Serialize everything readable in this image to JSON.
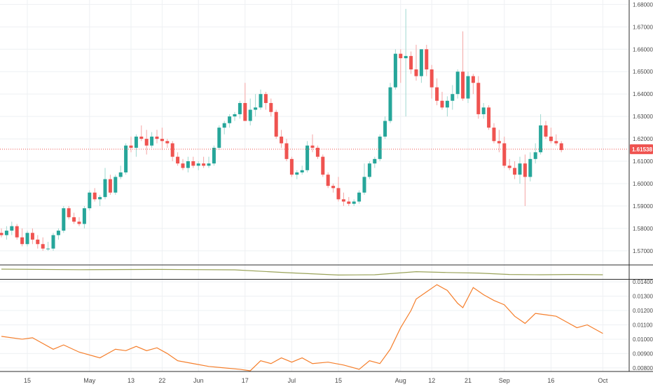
{
  "chart_data": {
    "type": "candlestick",
    "colors": {
      "up": "#26a69a",
      "down": "#ef5350",
      "wick_up": "#9fd8d0",
      "wick_down": "#f4a5a4",
      "price_line": "#ef5350",
      "price_tag_bg": "#ef5350",
      "volume_line": "#9aa35a",
      "atr_line": "#f57f2c",
      "grid": "#eef0f3",
      "axis": "#2e2e2e"
    },
    "price_axis": {
      "ylim": [
        1.564,
        1.682
      ],
      "ticks": [
        "1.57000",
        "1.58000",
        "1.59000",
        "1.60000",
        "1.61000",
        "1.62000",
        "1.63000",
        "1.64000",
        "1.65000",
        "1.66000",
        "1.67000",
        "1.68000"
      ]
    },
    "current_price": 1.61538,
    "current_price_label": "1.61538",
    "x_axis": {
      "ticks": [
        {
          "i": 5,
          "label": "15"
        },
        {
          "i": 17,
          "label": "May"
        },
        {
          "i": 25,
          "label": "13"
        },
        {
          "i": 31,
          "label": "22"
        },
        {
          "i": 38,
          "label": "Jun"
        },
        {
          "i": 47,
          "label": "17"
        },
        {
          "i": 56,
          "label": "Jul"
        },
        {
          "i": 65,
          "label": "15"
        },
        {
          "i": 77,
          "label": "Aug"
        },
        {
          "i": 83,
          "label": "12"
        },
        {
          "i": 90,
          "label": "21"
        },
        {
          "i": 97,
          "label": "Sep"
        },
        {
          "i": 106,
          "label": "16"
        },
        {
          "i": 116,
          "label": "Oct"
        }
      ]
    },
    "candles": [
      [
        1.578,
        1.58,
        1.576,
        1.577
      ],
      [
        1.577,
        1.581,
        1.575,
        1.579
      ],
      [
        1.579,
        1.583,
        1.577,
        1.581
      ],
      [
        1.581,
        1.582,
        1.575,
        1.576
      ],
      [
        1.576,
        1.58,
        1.572,
        1.573
      ],
      [
        1.573,
        1.579,
        1.572,
        1.578
      ],
      [
        1.578,
        1.58,
        1.573,
        1.575
      ],
      [
        1.575,
        1.577,
        1.571,
        1.573
      ],
      [
        1.573,
        1.576,
        1.57,
        1.571
      ],
      [
        1.571,
        1.574,
        1.57,
        1.571
      ],
      [
        1.571,
        1.578,
        1.57,
        1.577
      ],
      [
        1.577,
        1.58,
        1.575,
        1.579
      ],
      [
        1.579,
        1.59,
        1.578,
        1.589
      ],
      [
        1.589,
        1.59,
        1.584,
        1.585
      ],
      [
        1.585,
        1.587,
        1.582,
        1.583
      ],
      [
        1.583,
        1.585,
        1.581,
        1.582
      ],
      [
        1.582,
        1.59,
        1.58,
        1.589
      ],
      [
        1.589,
        1.597,
        1.588,
        1.596
      ],
      [
        1.596,
        1.598,
        1.592,
        1.593
      ],
      [
        1.593,
        1.595,
        1.59,
        1.594
      ],
      [
        1.594,
        1.607,
        1.593,
        1.602
      ],
      [
        1.602,
        1.604,
        1.595,
        1.596
      ],
      [
        1.596,
        1.604,
        1.595,
        1.603
      ],
      [
        1.603,
        1.608,
        1.602,
        1.605
      ],
      [
        1.605,
        1.618,
        1.604,
        1.617
      ],
      [
        1.617,
        1.621,
        1.614,
        1.616
      ],
      [
        1.616,
        1.622,
        1.612,
        1.621
      ],
      [
        1.621,
        1.626,
        1.619,
        1.62
      ],
      [
        1.62,
        1.624,
        1.613,
        1.617
      ],
      [
        1.617,
        1.623,
        1.616,
        1.621
      ],
      [
        1.621,
        1.624,
        1.618,
        1.62
      ],
      [
        1.62,
        1.625,
        1.615,
        1.619
      ],
      [
        1.619,
        1.62,
        1.616,
        1.618
      ],
      [
        1.618,
        1.619,
        1.61,
        1.612
      ],
      [
        1.612,
        1.614,
        1.608,
        1.609
      ],
      [
        1.609,
        1.611,
        1.606,
        1.607
      ],
      [
        1.607,
        1.612,
        1.605,
        1.61
      ],
      [
        1.61,
        1.612,
        1.607,
        1.608
      ],
      [
        1.608,
        1.61,
        1.606,
        1.609
      ],
      [
        1.609,
        1.612,
        1.607,
        1.608
      ],
      [
        1.608,
        1.612,
        1.607,
        1.609
      ],
      [
        1.609,
        1.617,
        1.608,
        1.616
      ],
      [
        1.616,
        1.626,
        1.615,
        1.625
      ],
      [
        1.625,
        1.628,
        1.622,
        1.627
      ],
      [
        1.627,
        1.631,
        1.625,
        1.63
      ],
      [
        1.63,
        1.632,
        1.628,
        1.631
      ],
      [
        1.631,
        1.637,
        1.629,
        1.636
      ],
      [
        1.636,
        1.645,
        1.628,
        1.628
      ],
      [
        1.628,
        1.638,
        1.626,
        1.633
      ],
      [
        1.633,
        1.64,
        1.63,
        1.634
      ],
      [
        1.634,
        1.642,
        1.633,
        1.64
      ],
      [
        1.64,
        1.641,
        1.633,
        1.636
      ],
      [
        1.636,
        1.638,
        1.63,
        1.632
      ],
      [
        1.632,
        1.633,
        1.62,
        1.621
      ],
      [
        1.621,
        1.624,
        1.616,
        1.618
      ],
      [
        1.618,
        1.62,
        1.61,
        1.611
      ],
      [
        1.611,
        1.612,
        1.603,
        1.604
      ],
      [
        1.604,
        1.606,
        1.602,
        1.605
      ],
      [
        1.605,
        1.608,
        1.604,
        1.606
      ],
      [
        1.606,
        1.619,
        1.605,
        1.617
      ],
      [
        1.617,
        1.622,
        1.614,
        1.616
      ],
      [
        1.616,
        1.617,
        1.611,
        1.612
      ],
      [
        1.612,
        1.613,
        1.603,
        1.604
      ],
      [
        1.604,
        1.605,
        1.598,
        1.599
      ],
      [
        1.599,
        1.6,
        1.596,
        1.598
      ],
      [
        1.598,
        1.603,
        1.592,
        1.593
      ],
      [
        1.593,
        1.596,
        1.59,
        1.592
      ],
      [
        1.592,
        1.594,
        1.59,
        1.591
      ],
      [
        1.591,
        1.593,
        1.59,
        1.592
      ],
      [
        1.592,
        1.597,
        1.591,
        1.596
      ],
      [
        1.596,
        1.609,
        1.595,
        1.603
      ],
      [
        1.603,
        1.61,
        1.602,
        1.609
      ],
      [
        1.609,
        1.612,
        1.607,
        1.611
      ],
      [
        1.611,
        1.622,
        1.61,
        1.621
      ],
      [
        1.621,
        1.63,
        1.62,
        1.628
      ],
      [
        1.628,
        1.645,
        1.627,
        1.643
      ],
      [
        1.643,
        1.66,
        1.642,
        1.658
      ],
      [
        1.658,
        1.66,
        1.645,
        1.656
      ],
      [
        1.656,
        1.678,
        1.63,
        1.657
      ],
      [
        1.657,
        1.659,
        1.649,
        1.651
      ],
      [
        1.651,
        1.662,
        1.646,
        1.648
      ],
      [
        1.648,
        1.66,
        1.645,
        1.66
      ],
      [
        1.66,
        1.662,
        1.648,
        1.651
      ],
      [
        1.651,
        1.653,
        1.638,
        1.643
      ],
      [
        1.643,
        1.647,
        1.635,
        1.637
      ],
      [
        1.637,
        1.641,
        1.633,
        1.634
      ],
      [
        1.634,
        1.639,
        1.63,
        1.637
      ],
      [
        1.637,
        1.644,
        1.633,
        1.64
      ],
      [
        1.64,
        1.651,
        1.638,
        1.65
      ],
      [
        1.65,
        1.668,
        1.637,
        1.638
      ],
      [
        1.638,
        1.65,
        1.636,
        1.648
      ],
      [
        1.648,
        1.649,
        1.64,
        1.645
      ],
      [
        1.645,
        1.648,
        1.629,
        1.631
      ],
      [
        1.631,
        1.636,
        1.629,
        1.634
      ],
      [
        1.634,
        1.635,
        1.624,
        1.625
      ],
      [
        1.625,
        1.627,
        1.618,
        1.619
      ],
      [
        1.619,
        1.624,
        1.614,
        1.618
      ],
      [
        1.618,
        1.621,
        1.607,
        1.608
      ],
      [
        1.608,
        1.611,
        1.606,
        1.607
      ],
      [
        1.607,
        1.61,
        1.602,
        1.604
      ],
      [
        1.604,
        1.612,
        1.6,
        1.609
      ],
      [
        1.609,
        1.613,
        1.59,
        1.603
      ],
      [
        1.603,
        1.614,
        1.601,
        1.611
      ],
      [
        1.611,
        1.618,
        1.609,
        1.614
      ],
      [
        1.614,
        1.631,
        1.613,
        1.626
      ],
      [
        1.626,
        1.628,
        1.62,
        1.621
      ],
      [
        1.621,
        1.625,
        1.618,
        1.619
      ],
      [
        1.619,
        1.622,
        1.617,
        1.618
      ],
      [
        1.618,
        1.619,
        1.614,
        1.615
      ]
    ],
    "volume_line": [
      [
        0,
        0.7
      ],
      [
        15,
        0.66
      ],
      [
        30,
        0.68
      ],
      [
        45,
        0.65
      ],
      [
        55,
        0.45
      ],
      [
        65,
        0.28
      ],
      [
        72,
        0.3
      ],
      [
        80,
        0.52
      ],
      [
        86,
        0.46
      ],
      [
        92,
        0.42
      ],
      [
        98,
        0.32
      ],
      [
        104,
        0.3
      ],
      [
        110,
        0.32
      ],
      [
        116,
        0.3
      ]
    ],
    "atr_axis": {
      "ylim": [
        0.00775,
        0.01415
      ],
      "ticks": [
        "0.00800",
        "0.00900",
        "0.01000",
        "0.01100",
        "0.01200",
        "0.01300",
        "0.01400"
      ]
    },
    "atr_line": [
      [
        0,
        0.0102
      ],
      [
        4,
        0.01
      ],
      [
        6,
        0.0101
      ],
      [
        7,
        0.0099
      ],
      [
        10,
        0.0093
      ],
      [
        12,
        0.0096
      ],
      [
        15,
        0.0091
      ],
      [
        18,
        0.0088
      ],
      [
        19,
        0.0087
      ],
      [
        22,
        0.0093
      ],
      [
        24,
        0.0092
      ],
      [
        26,
        0.0095
      ],
      [
        28,
        0.0092
      ],
      [
        30,
        0.0094
      ],
      [
        32,
        0.009
      ],
      [
        34,
        0.0085
      ],
      [
        37,
        0.0083
      ],
      [
        40,
        0.0081
      ],
      [
        43,
        0.008
      ],
      [
        46,
        0.0079
      ],
      [
        48,
        0.0078
      ],
      [
        50,
        0.0085
      ],
      [
        52,
        0.0083
      ],
      [
        54,
        0.0087
      ],
      [
        56,
        0.0084
      ],
      [
        58,
        0.0087
      ],
      [
        60,
        0.0083
      ],
      [
        63,
        0.0084
      ],
      [
        66,
        0.0082
      ],
      [
        69,
        0.0079
      ],
      [
        71,
        0.0085
      ],
      [
        73,
        0.0083
      ],
      [
        75,
        0.0093
      ],
      [
        77,
        0.0108
      ],
      [
        79,
        0.012
      ],
      [
        80,
        0.0128
      ],
      [
        82,
        0.0133
      ],
      [
        84,
        0.0138
      ],
      [
        86,
        0.0134
      ],
      [
        88,
        0.0125
      ],
      [
        89,
        0.0122
      ],
      [
        91,
        0.0136
      ],
      [
        93,
        0.0131
      ],
      [
        95,
        0.0127
      ],
      [
        97,
        0.0124
      ],
      [
        99,
        0.0116
      ],
      [
        101,
        0.0111
      ],
      [
        103,
        0.0118
      ],
      [
        105,
        0.0117
      ],
      [
        107,
        0.0116
      ],
      [
        109,
        0.0112
      ],
      [
        111,
        0.0108
      ],
      [
        113,
        0.011
      ],
      [
        116,
        0.0104
      ]
    ]
  }
}
